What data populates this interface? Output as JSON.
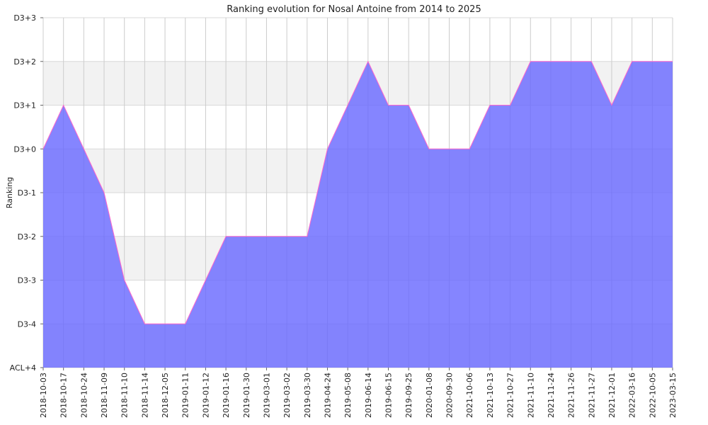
{
  "chart_data": {
    "type": "area",
    "title": "Ranking evolution for Nosal Antoine from 2014 to 2025",
    "xlabel": "",
    "ylabel": "Ranking",
    "y_ticks": [
      "ACL+4",
      "D3-4",
      "D3-3",
      "D3-2",
      "D3-1",
      "D3+0",
      "D3+1",
      "D3+2",
      "D3+3"
    ],
    "x": [
      "2018-10-03",
      "2018-10-17",
      "2018-10-24",
      "2018-11-09",
      "2018-11-10",
      "2018-11-14",
      "2018-12-05",
      "2019-01-11",
      "2019-01-12",
      "2019-01-16",
      "2019-01-30",
      "2019-03-01",
      "2019-03-02",
      "2019-03-30",
      "2019-04-24",
      "2019-05-08",
      "2019-06-14",
      "2019-06-15",
      "2019-09-25",
      "2020-01-08",
      "2020-09-30",
      "2021-10-06",
      "2021-10-13",
      "2021-10-27",
      "2021-11-10",
      "2021-11-24",
      "2021-11-26",
      "2021-11-27",
      "2021-12-01",
      "2022-03-16",
      "2022-10-05",
      "2023-03-15"
    ],
    "series": [
      {
        "values": [
          "D3+0",
          "D3+1",
          "D3+0",
          "D3-1",
          "D3-3",
          "D3-4",
          "D3-4",
          "D3-4",
          "D3-3",
          "D3-2",
          "D3-2",
          "D3-2",
          "D3-2",
          "D3-2",
          "D3+0",
          "D3+1",
          "D3+2",
          "D3+1",
          "D3+1",
          "D3+0",
          "D3+0",
          "D3+0",
          "D3+1",
          "D3+1",
          "D3+2",
          "D3+2",
          "D3+2",
          "D3+2",
          "D3+1",
          "D3+2",
          "D3+2",
          "D3+2"
        ]
      }
    ],
    "grid": true,
    "band_colors": [
      "#ffffff",
      "#f2f2f2"
    ],
    "fill_color": "#6666ff",
    "fill_opacity": 0.8,
    "line_color": "#ff66cc"
  }
}
